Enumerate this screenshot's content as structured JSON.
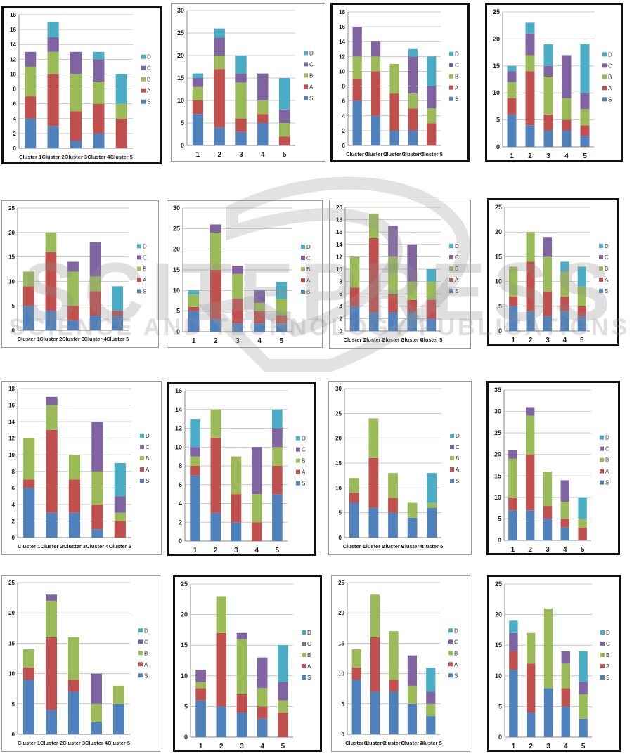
{
  "colors": {
    "S": "#4f81bd",
    "A": "#c0504d",
    "B": "#9bbb59",
    "C": "#8064a2",
    "D": "#4bacc6",
    "grid": "#c8c8c8",
    "axis": "#888888"
  },
  "watermark": {
    "title": "SCITEPRESS",
    "subtitle": "SCIENCE AND TECHNOLOGY PUBLICATIONS"
  },
  "chart_data": [
    {
      "type": "bar",
      "stacked": true,
      "categories": [
        "Cluster 1",
        "Cluster 2",
        "Cluster 3",
        "Cluster 4",
        "Cluster 5"
      ],
      "ylim": [
        0,
        18
      ],
      "ytick": 2,
      "series": [
        {
          "name": "S",
          "values": [
            4,
            3,
            1,
            2,
            0
          ]
        },
        {
          "name": "A",
          "values": [
            3,
            7,
            4,
            4,
            4
          ]
        },
        {
          "name": "B",
          "values": [
            4,
            3,
            5,
            3,
            2
          ]
        },
        {
          "name": "C",
          "values": [
            2,
            2,
            3,
            3,
            0
          ]
        },
        {
          "name": "D",
          "values": [
            0,
            2,
            0,
            1,
            4
          ]
        }
      ]
    },
    {
      "type": "bar",
      "stacked": true,
      "categories": [
        "1",
        "2",
        "3",
        "4",
        "5"
      ],
      "ylim": [
        0,
        30
      ],
      "ytick": 5,
      "series": [
        {
          "name": "S",
          "values": [
            7,
            4,
            3,
            5,
            0
          ]
        },
        {
          "name": "A",
          "values": [
            3,
            13,
            3,
            2,
            2
          ]
        },
        {
          "name": "B",
          "values": [
            3,
            3,
            8,
            3,
            3
          ]
        },
        {
          "name": "C",
          "values": [
            2,
            4,
            2,
            6,
            3
          ]
        },
        {
          "name": "D",
          "values": [
            1,
            2,
            4,
            0,
            7
          ]
        }
      ]
    },
    {
      "type": "bar",
      "stacked": true,
      "categories": [
        "Cluster 1",
        "Cluster 2",
        "Cluster 3",
        "Cluster 4",
        "Cluster 5"
      ],
      "ylim": [
        0,
        18
      ],
      "ytick": 2,
      "series": [
        {
          "name": "S",
          "values": [
            6,
            4,
            2,
            2,
            0
          ]
        },
        {
          "name": "A",
          "values": [
            3,
            6,
            5,
            3,
            3
          ]
        },
        {
          "name": "B",
          "values": [
            3,
            2,
            4,
            2,
            2
          ]
        },
        {
          "name": "C",
          "values": [
            4,
            2,
            0,
            5,
            3
          ]
        },
        {
          "name": "D",
          "values": [
            0,
            0,
            0,
            1,
            4
          ]
        }
      ]
    },
    {
      "type": "bar",
      "stacked": true,
      "categories": [
        "1",
        "2",
        "3",
        "4",
        "5"
      ],
      "ylim": [
        0,
        25
      ],
      "ytick": 5,
      "series": [
        {
          "name": "S",
          "values": [
            6,
            4,
            3,
            3,
            2
          ]
        },
        {
          "name": "A",
          "values": [
            3,
            10,
            3,
            2,
            2
          ]
        },
        {
          "name": "B",
          "values": [
            3,
            3,
            7,
            4,
            3
          ]
        },
        {
          "name": "C",
          "values": [
            2,
            4,
            2,
            8,
            3
          ]
        },
        {
          "name": "D",
          "values": [
            1,
            2,
            4,
            0,
            9
          ]
        }
      ]
    },
    {
      "type": "bar",
      "stacked": true,
      "categories": [
        "Cluster 1",
        "Cluster 2",
        "Cluster 3",
        "Cluster 4",
        "Cluster 5"
      ],
      "ylim": [
        0,
        25
      ],
      "ytick": 5,
      "series": [
        {
          "name": "S",
          "values": [
            5,
            4,
            2,
            3,
            3
          ]
        },
        {
          "name": "A",
          "values": [
            4,
            12,
            3,
            5,
            1
          ]
        },
        {
          "name": "B",
          "values": [
            3,
            4,
            7,
            3,
            0
          ]
        },
        {
          "name": "C",
          "values": [
            0,
            0,
            2,
            7,
            0
          ]
        },
        {
          "name": "D",
          "values": [
            0,
            0,
            0,
            0,
            5
          ]
        }
      ]
    },
    {
      "type": "bar",
      "stacked": true,
      "categories": [
        "1",
        "2",
        "3",
        "4",
        "5"
      ],
      "ylim": [
        0,
        30
      ],
      "ytick": 5,
      "series": [
        {
          "name": "S",
          "values": [
            5,
            3,
            2,
            2,
            2
          ]
        },
        {
          "name": "A",
          "values": [
            1,
            12,
            6,
            3,
            2
          ]
        },
        {
          "name": "B",
          "values": [
            3,
            9,
            6,
            2,
            4
          ]
        },
        {
          "name": "C",
          "values": [
            0,
            2,
            2,
            3,
            0
          ]
        },
        {
          "name": "D",
          "values": [
            1,
            0,
            0,
            0,
            4
          ]
        }
      ]
    },
    {
      "type": "bar",
      "stacked": true,
      "categories": [
        "Cluster 1",
        "Cluster 2",
        "Cluster 3",
        "Cluster 4",
        "Cluster 5"
      ],
      "ylim": [
        0,
        20
      ],
      "ytick": 2,
      "series": [
        {
          "name": "S",
          "values": [
            4,
            3,
            3,
            3,
            2
          ]
        },
        {
          "name": "A",
          "values": [
            3,
            12,
            3,
            2,
            3
          ]
        },
        {
          "name": "B",
          "values": [
            5,
            4,
            6,
            3,
            3
          ]
        },
        {
          "name": "C",
          "values": [
            0,
            0,
            5,
            6,
            0
          ]
        },
        {
          "name": "D",
          "values": [
            0,
            0,
            0,
            0,
            2
          ]
        }
      ]
    },
    {
      "type": "bar",
      "stacked": true,
      "categories": [
        "1",
        "2",
        "3",
        "4",
        "5"
      ],
      "ylim": [
        0,
        25
      ],
      "ytick": 5,
      "series": [
        {
          "name": "S",
          "values": [
            5,
            4,
            3,
            4,
            3
          ]
        },
        {
          "name": "A",
          "values": [
            2,
            10,
            5,
            3,
            2
          ]
        },
        {
          "name": "B",
          "values": [
            6,
            6,
            7,
            5,
            4
          ]
        },
        {
          "name": "C",
          "values": [
            0,
            0,
            4,
            0,
            0
          ]
        },
        {
          "name": "D",
          "values": [
            0,
            0,
            0,
            2,
            4
          ]
        }
      ]
    },
    {
      "type": "bar",
      "stacked": true,
      "categories": [
        "Cluster 1",
        "Cluster 2",
        "Cluster 3",
        "Cluster 4",
        "Cluster 5"
      ],
      "ylim": [
        0,
        18
      ],
      "ytick": 2,
      "series": [
        {
          "name": "S",
          "values": [
            6,
            3,
            3,
            1,
            0
          ]
        },
        {
          "name": "A",
          "values": [
            1,
            10,
            4,
            3,
            2
          ]
        },
        {
          "name": "B",
          "values": [
            5,
            3,
            3,
            4,
            1
          ]
        },
        {
          "name": "C",
          "values": [
            0,
            1,
            0,
            6,
            2
          ]
        },
        {
          "name": "D",
          "values": [
            0,
            0,
            0,
            0,
            4
          ]
        }
      ]
    },
    {
      "type": "bar",
      "stacked": true,
      "categories": [
        "1",
        "2",
        "3",
        "4",
        "5"
      ],
      "ylim": [
        0,
        16
      ],
      "ytick": 2,
      "series": [
        {
          "name": "S",
          "values": [
            7,
            3,
            2,
            0,
            5
          ]
        },
        {
          "name": "A",
          "values": [
            1,
            8,
            3,
            2,
            3
          ]
        },
        {
          "name": "B",
          "values": [
            1,
            3,
            4,
            3,
            2
          ]
        },
        {
          "name": "C",
          "values": [
            1,
            0,
            0,
            5,
            2
          ]
        },
        {
          "name": "D",
          "values": [
            3,
            0,
            0,
            0,
            2
          ]
        }
      ]
    },
    {
      "type": "bar",
      "stacked": true,
      "categories": [
        "Cluster 1",
        "Cluster 2",
        "Cluster 3",
        "Cluster 4",
        "Cluster 5"
      ],
      "ylim": [
        0,
        30
      ],
      "ytick": 5,
      "series": [
        {
          "name": "S",
          "values": [
            7,
            6,
            5,
            4,
            6
          ]
        },
        {
          "name": "A",
          "values": [
            2,
            10,
            3,
            0,
            0
          ]
        },
        {
          "name": "B",
          "values": [
            3,
            8,
            5,
            3,
            1
          ]
        },
        {
          "name": "C",
          "values": [
            0,
            0,
            0,
            0,
            0
          ]
        },
        {
          "name": "D",
          "values": [
            0,
            0,
            0,
            0,
            6
          ]
        }
      ]
    },
    {
      "type": "bar",
      "stacked": true,
      "categories": [
        "1",
        "2",
        "3",
        "4",
        "5"
      ],
      "ylim": [
        0,
        35
      ],
      "ytick": 5,
      "series": [
        {
          "name": "S",
          "values": [
            7,
            7,
            5,
            3,
            0
          ]
        },
        {
          "name": "A",
          "values": [
            3,
            13,
            3,
            2,
            3
          ]
        },
        {
          "name": "B",
          "values": [
            9,
            9,
            8,
            4,
            2
          ]
        },
        {
          "name": "C",
          "values": [
            2,
            2,
            0,
            5,
            0
          ]
        },
        {
          "name": "D",
          "values": [
            0,
            0,
            0,
            0,
            5
          ]
        }
      ]
    },
    {
      "type": "bar",
      "stacked": true,
      "categories": [
        "Cluster 1",
        "Cluster 2",
        "Cluster 3",
        "Cluster 4",
        "Cluster 5"
      ],
      "ylim": [
        0,
        25
      ],
      "ytick": 5,
      "series": [
        {
          "name": "S",
          "values": [
            9,
            4,
            7,
            2,
            5
          ]
        },
        {
          "name": "A",
          "values": [
            2,
            12,
            2,
            0,
            0
          ]
        },
        {
          "name": "B",
          "values": [
            3,
            6,
            7,
            3,
            3
          ]
        },
        {
          "name": "C",
          "values": [
            0,
            1,
            0,
            5,
            0
          ]
        },
        {
          "name": "D",
          "values": [
            0,
            0,
            0,
            0,
            0
          ]
        }
      ]
    },
    {
      "type": "bar",
      "stacked": true,
      "categories": [
        "1",
        "2",
        "3",
        "4",
        "5"
      ],
      "ylim": [
        0,
        25
      ],
      "ytick": 5,
      "series": [
        {
          "name": "S",
          "values": [
            6,
            5,
            4,
            3,
            0
          ]
        },
        {
          "name": "A",
          "values": [
            2,
            12,
            3,
            2,
            4
          ]
        },
        {
          "name": "B",
          "values": [
            1,
            6,
            9,
            3,
            2
          ]
        },
        {
          "name": "C",
          "values": [
            2,
            0,
            1,
            5,
            3
          ]
        },
        {
          "name": "D",
          "values": [
            0,
            0,
            0,
            0,
            6
          ]
        }
      ]
    },
    {
      "type": "bar",
      "stacked": true,
      "categories": [
        "Cluster 1",
        "Cluster 2",
        "Cluster 3",
        "Cluster 4",
        "Cluster 5"
      ],
      "ylim": [
        0,
        25
      ],
      "ytick": 5,
      "series": [
        {
          "name": "S",
          "values": [
            9,
            7,
            7,
            5,
            3
          ]
        },
        {
          "name": "A",
          "values": [
            2,
            9,
            2,
            0,
            0
          ]
        },
        {
          "name": "B",
          "values": [
            3,
            7,
            8,
            3,
            2
          ]
        },
        {
          "name": "C",
          "values": [
            0,
            0,
            0,
            5,
            2
          ]
        },
        {
          "name": "D",
          "values": [
            0,
            0,
            0,
            0,
            4
          ]
        }
      ]
    },
    {
      "type": "bar",
      "stacked": true,
      "categories": [
        "1",
        "2",
        "3",
        "4",
        "5"
      ],
      "ylim": [
        0,
        25
      ],
      "ytick": 5,
      "series": [
        {
          "name": "S",
          "values": [
            11,
            4,
            8,
            5,
            3
          ]
        },
        {
          "name": "A",
          "values": [
            3,
            8,
            0,
            3,
            0
          ]
        },
        {
          "name": "B",
          "values": [
            0,
            5,
            13,
            4,
            4
          ]
        },
        {
          "name": "C",
          "values": [
            3,
            0,
            0,
            2,
            2
          ]
        },
        {
          "name": "D",
          "values": [
            2,
            0,
            0,
            0,
            5
          ]
        }
      ]
    }
  ]
}
